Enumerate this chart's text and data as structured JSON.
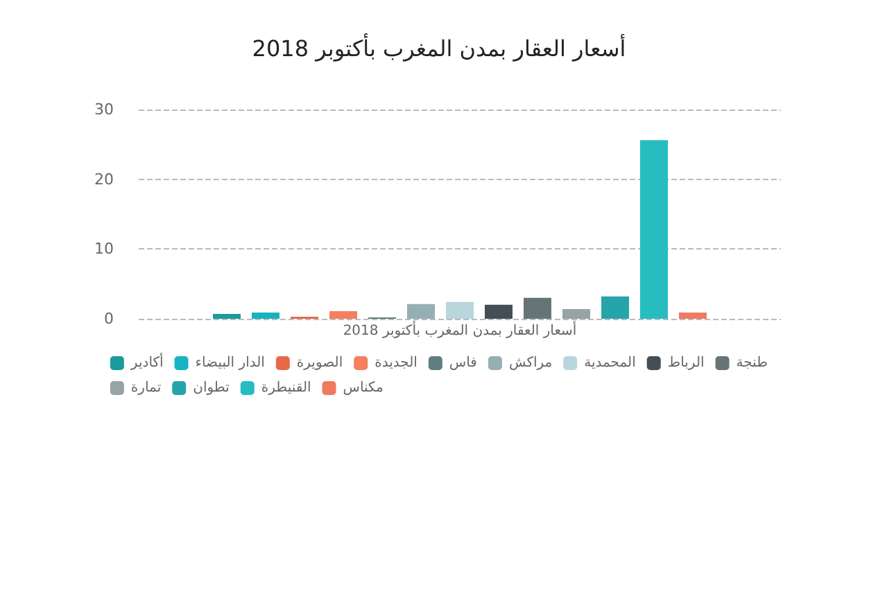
{
  "chart_data": {
    "type": "bar",
    "title": "أسعار العقار بمدن المغرب بأكتوبر 2018",
    "categories": [
      "أسعار العقار بمدن المغرب بأكتوبر 2018"
    ],
    "series": [
      {
        "name": "أكادير",
        "color": "#1a9a9a",
        "values": [
          0.7
        ]
      },
      {
        "name": "الدار البيضاء",
        "color": "#16b3c0",
        "values": [
          0.9
        ]
      },
      {
        "name": "الصويرة",
        "color": "#e8694a",
        "values": [
          0.3
        ]
      },
      {
        "name": "الجديدة",
        "color": "#f4805f",
        "values": [
          1.1
        ]
      },
      {
        "name": "فاس",
        "color": "#5f7d82",
        "values": [
          0.2
        ]
      },
      {
        "name": "مراكش",
        "color": "#94b0b4",
        "values": [
          2.1
        ]
      },
      {
        "name": "المحمدية",
        "color": "#b8d6dc",
        "values": [
          2.4
        ]
      },
      {
        "name": "الرباط",
        "color": "#434f55",
        "values": [
          2.0
        ]
      },
      {
        "name": "طنجة",
        "color": "#677476",
        "values": [
          3.0
        ]
      },
      {
        "name": "تمارة",
        "color": "#98a4a4",
        "values": [
          1.4
        ]
      },
      {
        "name": "تطوان",
        "color": "#25a5aa",
        "values": [
          3.2
        ]
      },
      {
        "name": "القنيطرة",
        "color": "#26bcc0",
        "values": [
          25.6
        ]
      },
      {
        "name": "مكناس",
        "color": "#ee7a60",
        "values": [
          0.9
        ]
      }
    ],
    "ylim": [
      0,
      30
    ],
    "yticks": [
      0,
      10,
      20,
      30
    ],
    "grid": "y",
    "legend": "bottom"
  }
}
